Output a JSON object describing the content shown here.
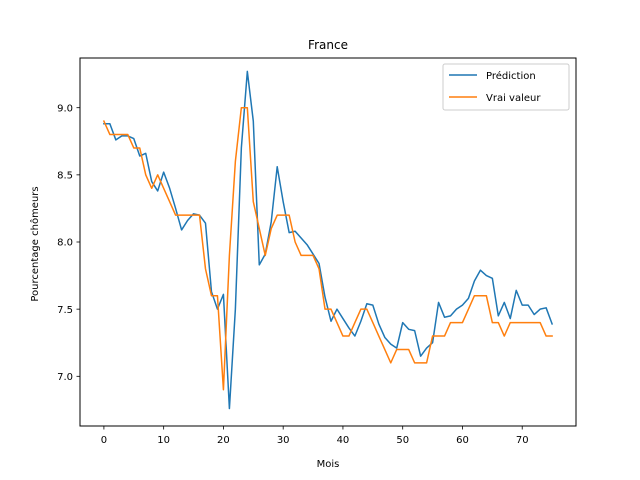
{
  "chart_data": {
    "type": "line",
    "title": "France",
    "xlabel": "Mois",
    "ylabel": "Pourcentage chômeurs",
    "xlim": [
      -4,
      79
    ],
    "ylim": [
      6.63,
      9.37
    ],
    "xticks": [
      0,
      10,
      20,
      30,
      40,
      50,
      60,
      70
    ],
    "yticks": [
      7.0,
      7.5,
      8.0,
      8.5,
      9.0
    ],
    "ytick_labels": [
      "7.0",
      "7.5",
      "8.0",
      "8.5",
      "9.0"
    ],
    "grid": false,
    "legend_position": "top-right",
    "series": [
      {
        "name": "Prédiction",
        "color": "#1f77b4",
        "values": [
          8.88,
          8.88,
          8.76,
          8.79,
          8.79,
          8.77,
          8.64,
          8.66,
          8.45,
          8.38,
          8.52,
          8.4,
          8.25,
          8.09,
          8.16,
          8.21,
          8.2,
          8.14,
          7.63,
          7.5,
          7.61,
          6.76,
          7.5,
          8.7,
          9.27,
          8.9,
          7.83,
          7.91,
          8.15,
          8.56,
          8.3,
          8.07,
          8.08,
          8.03,
          7.98,
          7.91,
          7.84,
          7.59,
          7.41,
          7.5,
          7.43,
          7.36,
          7.3,
          7.41,
          7.54,
          7.53,
          7.39,
          7.29,
          7.24,
          7.21,
          7.4,
          7.35,
          7.34,
          7.15,
          7.21,
          7.25,
          7.55,
          7.44,
          7.45,
          7.5,
          7.53,
          7.58,
          7.71,
          7.79,
          7.75,
          7.73,
          7.45,
          7.55,
          7.43,
          7.64,
          7.53,
          7.53,
          7.46,
          7.5,
          7.51,
          7.39
        ]
      },
      {
        "name": "Vrai valeur",
        "color": "#ff7f0e",
        "values": [
          8.9,
          8.8,
          8.8,
          8.8,
          8.8,
          8.7,
          8.7,
          8.5,
          8.4,
          8.5,
          8.4,
          8.3,
          8.2,
          8.2,
          8.2,
          8.2,
          8.2,
          7.8,
          7.6,
          7.6,
          6.9,
          7.9,
          8.6,
          9.0,
          9.0,
          8.3,
          8.1,
          7.9,
          8.1,
          8.2,
          8.2,
          8.2,
          8.0,
          7.9,
          7.9,
          7.9,
          7.8,
          7.5,
          7.5,
          7.4,
          7.3,
          7.3,
          7.4,
          7.5,
          7.5,
          7.4,
          7.3,
          7.2,
          7.1,
          7.2,
          7.2,
          7.2,
          7.1,
          7.1,
          7.1,
          7.3,
          7.3,
          7.3,
          7.4,
          7.4,
          7.4,
          7.5,
          7.6,
          7.6,
          7.6,
          7.4,
          7.4,
          7.3,
          7.4,
          7.4,
          7.4,
          7.4,
          7.4,
          7.4,
          7.3,
          7.3
        ]
      }
    ]
  }
}
